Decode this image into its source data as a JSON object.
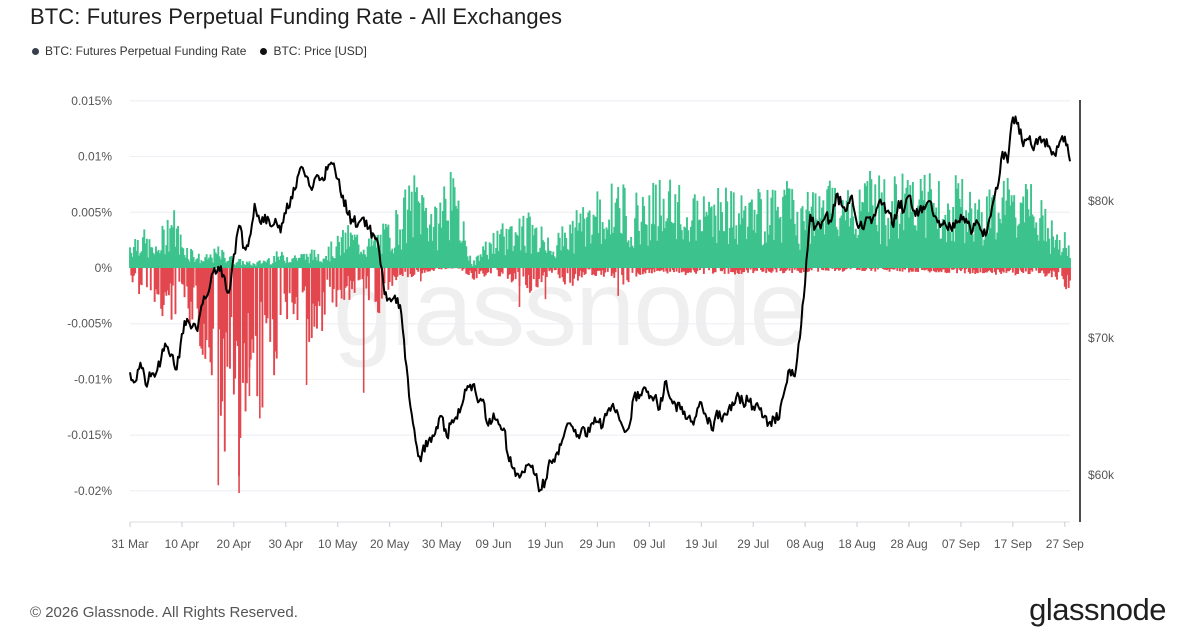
{
  "header": {
    "title": "BTC: Futures Perpetual Funding Rate - All Exchanges"
  },
  "legend": [
    {
      "label": "BTC: Futures Perpetual Funding Rate",
      "color": "#3a3f4d"
    },
    {
      "label": "BTC: Price [USD]",
      "color": "#111111"
    }
  ],
  "footer": {
    "copyright": "© 2026 Glassnode. All Rights Reserved.",
    "brand": "glassnode",
    "watermark": "glassnode"
  },
  "colors": {
    "positive": "#3dc38d",
    "negative": "#e2474e",
    "price": "#000000",
    "grid": "#eceef2"
  },
  "chart_data": {
    "type": "bar",
    "title": "BTC: Futures Perpetual Funding Rate - All Exchanges",
    "x_ticks": [
      "31 Mar",
      "10 Apr",
      "20 Apr",
      "30 Apr",
      "10 May",
      "20 May",
      "30 May",
      "09 Jun",
      "19 Jun",
      "29 Jun",
      "09 Jul",
      "19 Jul",
      "29 Jul",
      "08 Aug",
      "18 Aug",
      "28 Aug",
      "07 Sep",
      "17 Sep",
      "27 Sep"
    ],
    "x_range_days": [
      0,
      181
    ],
    "y_left": {
      "ticks": [
        "0.015%",
        "0.01%",
        "0.005%",
        "0%",
        "-0.005%",
        "-0.01%",
        "-0.015%",
        "-0.02%"
      ],
      "ticks_values": [
        0.015,
        0.01,
        0.005,
        0,
        -0.005,
        -0.01,
        -0.015,
        -0.02
      ],
      "range": [
        -0.0224,
        0.015
      ]
    },
    "y_right": {
      "ticks": [
        "$80k",
        "$70k",
        "$60k"
      ],
      "ticks_values": [
        80000,
        70000,
        60000
      ],
      "range": [
        56300,
        89000
      ]
    },
    "grid": true,
    "legend_position": "top-left",
    "series": [
      {
        "name": "BTC: Futures Perpetual Funding Rate",
        "type": "bar",
        "unit": "%",
        "envelope_positive": [
          [
            0,
            0.003
          ],
          [
            2,
            0.004
          ],
          [
            5,
            0.002
          ],
          [
            8,
            0.0065
          ],
          [
            10,
            0.003
          ],
          [
            14,
            0.001
          ],
          [
            17,
            0.002
          ],
          [
            20,
            0.001
          ],
          [
            24,
            0.0005
          ],
          [
            28,
            0.0015
          ],
          [
            33,
            0.0015
          ],
          [
            38,
            0.002
          ],
          [
            42,
            0.004
          ],
          [
            46,
            0.003
          ],
          [
            50,
            0.0045
          ],
          [
            55,
            0.009
          ],
          [
            57,
            0.008
          ],
          [
            59,
            0.0055
          ],
          [
            61,
            0.01
          ],
          [
            63,
            0.007
          ],
          [
            66,
            0.0005
          ],
          [
            69,
            0.003
          ],
          [
            73,
            0.0045
          ],
          [
            76,
            0.0055
          ],
          [
            79,
            0.004
          ],
          [
            82,
            0.003
          ],
          [
            86,
            0.0055
          ],
          [
            90,
            0.007
          ],
          [
            94,
            0.008
          ],
          [
            98,
            0.007
          ],
          [
            102,
            0.0085
          ],
          [
            106,
            0.0075
          ],
          [
            110,
            0.0065
          ],
          [
            113,
            0.0085
          ],
          [
            116,
            0.007
          ],
          [
            119,
            0.007
          ],
          [
            123,
            0.0075
          ],
          [
            126,
            0.0085
          ],
          [
            129,
            0.0065
          ],
          [
            133,
            0.0075
          ],
          [
            136,
            0.0085
          ],
          [
            139,
            0.0075
          ],
          [
            143,
            0.0095
          ],
          [
            146,
            0.0075
          ],
          [
            149,
            0.0095
          ],
          [
            152,
            0.01
          ],
          [
            155,
            0.008
          ],
          [
            158,
            0.0085
          ],
          [
            162,
            0.008
          ],
          [
            166,
            0.0075
          ],
          [
            170,
            0.009
          ],
          [
            174,
            0.0075
          ],
          [
            178,
            0.004
          ],
          [
            181,
            0.003
          ]
        ],
        "envelope_negative": [
          [
            0,
            -0.001
          ],
          [
            3,
            -0.0035
          ],
          [
            6,
            -0.0045
          ],
          [
            9,
            -0.0055
          ],
          [
            12,
            -0.0065
          ],
          [
            14,
            -0.008
          ],
          [
            16,
            -0.011
          ],
          [
            17,
            -0.015
          ],
          [
            18,
            -0.0185
          ],
          [
            19,
            -0.0165
          ],
          [
            20,
            -0.0145
          ],
          [
            21,
            -0.0195
          ],
          [
            22,
            -0.014
          ],
          [
            24,
            -0.012
          ],
          [
            26,
            -0.013
          ],
          [
            28,
            -0.0095
          ],
          [
            30,
            -0.0075
          ],
          [
            32,
            -0.0065
          ],
          [
            34,
            -0.0085
          ],
          [
            36,
            -0.0065
          ],
          [
            38,
            -0.005
          ],
          [
            40,
            -0.0045
          ],
          [
            42,
            -0.0035
          ],
          [
            44,
            -0.002
          ],
          [
            46,
            -0.003
          ],
          [
            48,
            -0.0045
          ],
          [
            50,
            -0.002
          ],
          [
            52,
            -0.0015
          ],
          [
            55,
            -0.0008
          ],
          [
            58,
            -0.0003
          ],
          [
            63,
            0
          ],
          [
            66,
            -0.0012
          ],
          [
            70,
            -0.0005
          ],
          [
            74,
            -0.0015
          ],
          [
            76,
            -0.002
          ],
          [
            78,
            -0.0025
          ],
          [
            80,
            -0.001
          ],
          [
            82,
            -0.0005
          ],
          [
            84,
            -0.002
          ],
          [
            86,
            -0.0015
          ],
          [
            88,
            -0.0005
          ],
          [
            95,
            -0.0015
          ],
          [
            100,
            -0.0005
          ],
          [
            110,
            -0.0007
          ],
          [
            125,
            -0.0005
          ],
          [
            140,
            -0.0003
          ],
          [
            160,
            -0.0005
          ],
          [
            177,
            -0.0008
          ],
          [
            179,
            -0.0015
          ],
          [
            181,
            -0.0022
          ]
        ],
        "deep_negative_spikes": [
          [
            17,
            -0.0195
          ],
          [
            21,
            -0.0202
          ],
          [
            23,
            -0.0115
          ],
          [
            25,
            -0.0135
          ],
          [
            28,
            -0.0075
          ],
          [
            34,
            -0.0105
          ],
          [
            45,
            -0.0112
          ],
          [
            56,
            -0.0012
          ],
          [
            75,
            -0.0035
          ],
          [
            80,
            -0.0028
          ],
          [
            94,
            -0.0025
          ]
        ]
      },
      {
        "name": "BTC: Price [USD]",
        "type": "line",
        "unit": "USD",
        "x": [
          0,
          1,
          2,
          3,
          4,
          5,
          6,
          7,
          8,
          9,
          10,
          11,
          12,
          13,
          14,
          15,
          16,
          17,
          18,
          19,
          20,
          21,
          22,
          23,
          24,
          25,
          26,
          27,
          28,
          29,
          30,
          31,
          32,
          33,
          34,
          35,
          36,
          37,
          38,
          39,
          40,
          41,
          42,
          43,
          44,
          45,
          46,
          47,
          48,
          49,
          50,
          51,
          52,
          53,
          54,
          55,
          56,
          57,
          58,
          59,
          60,
          61,
          62,
          63,
          64,
          65,
          66,
          67,
          68,
          69,
          70,
          71,
          72,
          73,
          74,
          75,
          76,
          77,
          78,
          79,
          80,
          81,
          82,
          83,
          84,
          85,
          86,
          87,
          88,
          89,
          90,
          91,
          92,
          93,
          94,
          95,
          96,
          97,
          98,
          99,
          100,
          101,
          102,
          103,
          104,
          105,
          106,
          107,
          108,
          109,
          110,
          111,
          112,
          113,
          114,
          115,
          116,
          117,
          118,
          119,
          120,
          121,
          122,
          123,
          124,
          125,
          126,
          127,
          128,
          129,
          130,
          131,
          132,
          133,
          134,
          135,
          136,
          137,
          138,
          139,
          140,
          141,
          142,
          143,
          144,
          145,
          146,
          147,
          148,
          149,
          150,
          151,
          152,
          153,
          154,
          155,
          156,
          157,
          158,
          159,
          160,
          161,
          162,
          163,
          164,
          165,
          166,
          167,
          168,
          169,
          170,
          171,
          172,
          173,
          174,
          175,
          176,
          177,
          178,
          179,
          180,
          181
        ],
        "values": [
          67500,
          66800,
          68200,
          66600,
          67200,
          67400,
          68500,
          69400,
          68800,
          67700,
          70300,
          71400,
          70800,
          70500,
          72500,
          73200,
          74800,
          75200,
          74600,
          73300,
          76100,
          78200,
          76600,
          77300,
          79800,
          78500,
          79000,
          78200,
          78700,
          77700,
          79100,
          80300,
          81000,
          82500,
          81800,
          80800,
          81900,
          81700,
          82300,
          82700,
          81600,
          80400,
          79000,
          78500,
          78400,
          78800,
          78000,
          77500,
          76300,
          73200,
          72900,
          73100,
          72400,
          68500,
          65000,
          62500,
          61000,
          62500,
          62400,
          63500,
          64300,
          62800,
          64000,
          64100,
          65200,
          66500,
          66600,
          65300,
          65500,
          63600,
          64500,
          63700,
          63400,
          61000,
          60500,
          59800,
          60200,
          60700,
          60000,
          58900,
          59600,
          61000,
          61500,
          62200,
          63500,
          63600,
          62800,
          63400,
          62800,
          63800,
          63900,
          63500,
          64700,
          65200,
          64400,
          63400,
          63400,
          65700,
          65600,
          66400,
          65600,
          65700,
          64800,
          66800,
          65600,
          65200,
          64800,
          64100,
          63900,
          64300,
          65300,
          64200,
          63300,
          64700,
          63900,
          64400,
          65300,
          66000,
          65300,
          65400,
          65000,
          65000,
          64200,
          63800,
          64200,
          64100,
          66100,
          67700,
          67200,
          70000,
          74000,
          79000,
          78100,
          78000,
          79000,
          78500,
          80500,
          79700,
          79300,
          80400,
          78300,
          78000,
          78800,
          78700,
          79600,
          79800,
          79300,
          78100,
          80000,
          79200,
          80400,
          79300,
          79300,
          79400,
          80000,
          78900,
          78100,
          78300,
          78100,
          78600,
          79000,
          78700,
          77600,
          78600,
          77800,
          77700,
          79600,
          80900,
          83600,
          82800,
          86100,
          85700,
          84000,
          84500,
          83700,
          84600,
          84500,
          84000,
          83400,
          84300,
          84700,
          82900
        ]
      }
    ]
  }
}
